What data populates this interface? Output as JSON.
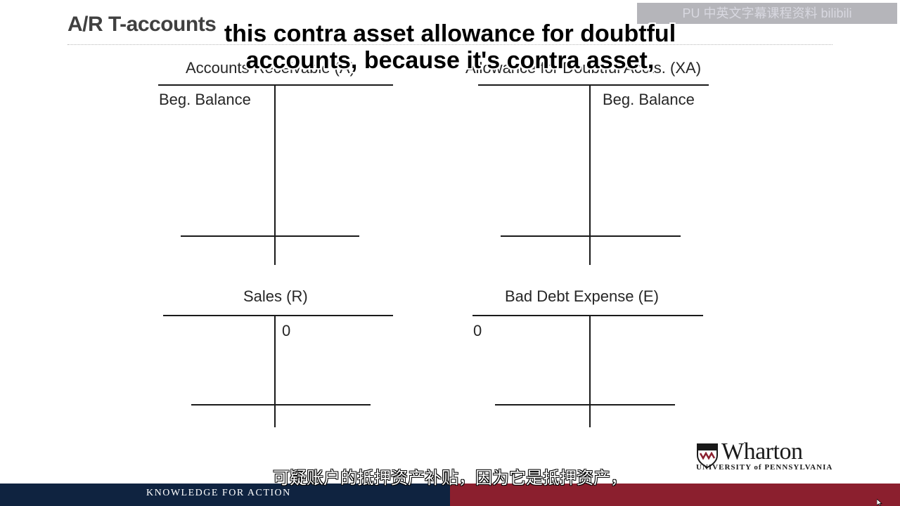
{
  "slide": {
    "title": "A/R T-accounts",
    "accounts": [
      {
        "title": "Accounts Receivable (A)",
        "left_entry": "Beg. Balance",
        "right_entry": ""
      },
      {
        "title": "Allowance for Doubtful Accts. (XA)",
        "left_entry": "",
        "right_entry": "Beg. Balance"
      },
      {
        "title": "Sales (R)",
        "left_entry": "",
        "right_entry": "0"
      },
      {
        "title": "Bad Debt Expense (E)",
        "left_entry": "0",
        "right_entry": ""
      }
    ]
  },
  "subtitles": {
    "english_line1": "this contra asset allowance for doubtful",
    "english_line2": "accounts, because it's contra asset,",
    "chinese": "可疑账户的抵押资产补贴，因为它是抵押资产，"
  },
  "branding": {
    "logo_name": "Wharton",
    "logo_subtitle": "UNIVERSITY of PENNSYLVANIA",
    "tagline": "KNOWLEDGE FOR ACTION",
    "footer_left_color": "#0f2340",
    "footer_right_color": "#8b1f2e"
  },
  "watermark": {
    "text": "PU 中英文字幕课程资料 bilibili"
  },
  "icons": {
    "logo": "wharton-shield-icon",
    "cursor": "mouse-pointer-icon"
  }
}
